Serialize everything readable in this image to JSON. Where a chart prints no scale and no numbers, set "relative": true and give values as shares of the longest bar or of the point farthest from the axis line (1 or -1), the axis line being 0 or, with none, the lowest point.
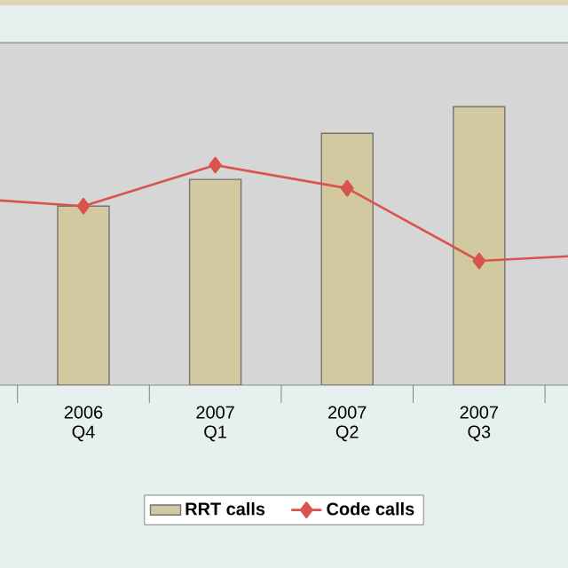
{
  "chart_data": {
    "type": "bar",
    "relative": true,
    "categories": [
      null,
      "2006 Q4",
      "2007 Q1",
      "2007 Q2",
      "2007 Q3",
      null
    ],
    "series": [
      {
        "name": "RRT calls",
        "type": "bar",
        "color": "#d3c9a0",
        "values": [
          null,
          0.643,
          0.739,
          0.904,
          1,
          null
        ]
      },
      {
        "name": "Code calls",
        "type": "line",
        "color": "#d9534f",
        "marker": "diamond",
        "line_style": "solid",
        "values": [
          0.675,
          0.643,
          0.79,
          0.707,
          0.446,
          0.471
        ]
      }
    ],
    "legend": "bottom"
  }
}
